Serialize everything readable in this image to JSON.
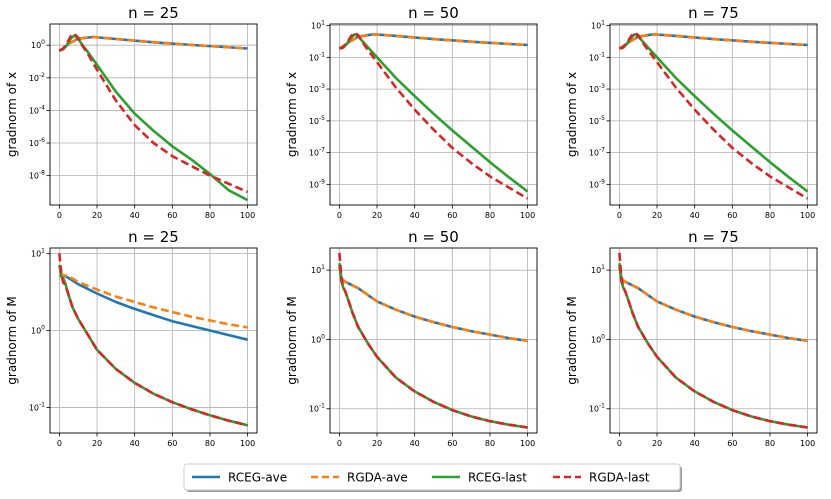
{
  "legend": {
    "items": [
      {
        "label": "RCEG-ave",
        "color": "#1f77b4",
        "dash": false
      },
      {
        "label": "RGDA-ave",
        "color": "#ff7f0e",
        "dash": true
      },
      {
        "label": "RCEG-last",
        "color": "#2ca02c",
        "dash": false
      },
      {
        "label": "RGDA-last",
        "color": "#d62728",
        "dash": true
      }
    ]
  },
  "chart_data": [
    {
      "type": "line",
      "title": "n = 25",
      "ylabel": "gradnorm of x",
      "yscale": "log",
      "xlim": [
        -5,
        105
      ],
      "ylim_exp": [
        -9.8,
        1.3
      ],
      "xticks": [
        "0",
        "20",
        "40",
        "60",
        "80",
        "100"
      ],
      "yticks": [
        {
          "base": "10",
          "exp": "0",
          "v": 0
        },
        {
          "base": "10",
          "exp": "-2",
          "v": -2
        },
        {
          "base": "10",
          "exp": "-4",
          "v": -4
        },
        {
          "base": "10",
          "exp": "-6",
          "v": -6
        },
        {
          "base": "10",
          "exp": "-8",
          "v": -8
        }
      ],
      "series": [
        {
          "name": "RCEG-ave",
          "x": [
            0,
            2,
            5,
            10,
            18,
            30,
            50,
            75,
            100
          ],
          "log10y": [
            -0.35,
            -0.2,
            0.1,
            0.4,
            0.5,
            0.38,
            0.18,
            -0.02,
            -0.2
          ]
        },
        {
          "name": "RGDA-ave",
          "x": [
            0,
            2,
            5,
            10,
            18,
            30,
            50,
            75,
            100
          ],
          "log10y": [
            -0.35,
            -0.2,
            0.1,
            0.4,
            0.5,
            0.38,
            0.18,
            -0.02,
            -0.2
          ]
        },
        {
          "name": "RCEG-last",
          "x": [
            0,
            2,
            4,
            6,
            8,
            10,
            12,
            15,
            20,
            30,
            40,
            50,
            60,
            70,
            80,
            90,
            100
          ],
          "log10y": [
            -0.3,
            -0.25,
            0.0,
            0.4,
            0.6,
            0.4,
            0.05,
            -0.4,
            -1.2,
            -2.85,
            -4.2,
            -5.25,
            -6.2,
            -7.0,
            -7.9,
            -8.9,
            -9.5
          ]
        },
        {
          "name": "RGDA-last",
          "x": [
            0,
            2,
            4,
            6,
            8,
            10,
            12,
            15,
            20,
            30,
            40,
            50,
            60,
            70,
            80,
            90,
            100
          ],
          "log10y": [
            -0.35,
            -0.2,
            0.1,
            0.55,
            0.7,
            0.45,
            0.0,
            -0.5,
            -1.5,
            -3.4,
            -4.9,
            -6.0,
            -6.8,
            -7.4,
            -8.0,
            -8.5,
            -9.0
          ]
        }
      ]
    },
    {
      "type": "line",
      "title": "n = 50",
      "ylabel": "gradnorm of x",
      "yscale": "log",
      "xlim": [
        -5,
        105
      ],
      "ylim_exp": [
        -10.3,
        1.1
      ],
      "xticks": [
        "0",
        "20",
        "40",
        "60",
        "80",
        "100"
      ],
      "yticks": [
        {
          "base": "10",
          "exp": "1",
          "v": 1
        },
        {
          "base": "10",
          "exp": "-1",
          "v": -1
        },
        {
          "base": "10",
          "exp": "-3",
          "v": -3
        },
        {
          "base": "10",
          "exp": "-5",
          "v": -5
        },
        {
          "base": "10",
          "exp": "-7",
          "v": -7
        },
        {
          "base": "10",
          "exp": "-9",
          "v": -9
        }
      ],
      "series": [
        {
          "name": "RCEG-ave",
          "x": [
            0,
            2,
            5,
            10,
            18,
            30,
            50,
            75,
            100
          ],
          "log10y": [
            -0.45,
            -0.3,
            -0.05,
            0.3,
            0.45,
            0.35,
            0.15,
            -0.05,
            -0.22
          ]
        },
        {
          "name": "RGDA-ave",
          "x": [
            0,
            2,
            5,
            10,
            18,
            30,
            50,
            75,
            100
          ],
          "log10y": [
            -0.45,
            -0.3,
            -0.05,
            0.3,
            0.45,
            0.35,
            0.15,
            -0.05,
            -0.22
          ]
        },
        {
          "name": "RCEG-last",
          "x": [
            0,
            2,
            4,
            6,
            8,
            10,
            12,
            15,
            20,
            30,
            40,
            50,
            60,
            70,
            80,
            90,
            100
          ],
          "log10y": [
            -0.45,
            -0.4,
            -0.15,
            0.2,
            0.45,
            0.35,
            0.05,
            -0.35,
            -1.0,
            -2.3,
            -3.45,
            -4.55,
            -5.6,
            -6.6,
            -7.6,
            -8.55,
            -9.45
          ]
        },
        {
          "name": "RGDA-last",
          "x": [
            0,
            2,
            4,
            6,
            8,
            10,
            12,
            15,
            20,
            30,
            40,
            50,
            60,
            70,
            80,
            90,
            100
          ],
          "log10y": [
            -0.45,
            -0.35,
            -0.1,
            0.3,
            0.55,
            0.4,
            0.0,
            -0.5,
            -1.3,
            -2.9,
            -4.3,
            -5.55,
            -6.7,
            -7.65,
            -8.5,
            -9.2,
            -9.9
          ]
        }
      ]
    },
    {
      "type": "line",
      "title": "n = 75",
      "ylabel": "gradnorm of x",
      "yscale": "log",
      "xlim": [
        -5,
        105
      ],
      "ylim_exp": [
        -10.3,
        1.1
      ],
      "xticks": [
        "0",
        "20",
        "40",
        "60",
        "80",
        "100"
      ],
      "yticks": [
        {
          "base": "10",
          "exp": "1",
          "v": 1
        },
        {
          "base": "10",
          "exp": "-1",
          "v": -1
        },
        {
          "base": "10",
          "exp": "-3",
          "v": -3
        },
        {
          "base": "10",
          "exp": "-5",
          "v": -5
        },
        {
          "base": "10",
          "exp": "-7",
          "v": -7
        },
        {
          "base": "10",
          "exp": "-9",
          "v": -9
        }
      ],
      "series": [
        {
          "name": "RCEG-ave",
          "x": [
            0,
            2,
            5,
            10,
            18,
            30,
            50,
            75,
            100
          ],
          "log10y": [
            -0.45,
            -0.3,
            -0.05,
            0.3,
            0.45,
            0.35,
            0.15,
            -0.05,
            -0.22
          ]
        },
        {
          "name": "RGDA-ave",
          "x": [
            0,
            2,
            5,
            10,
            18,
            30,
            50,
            75,
            100
          ],
          "log10y": [
            -0.45,
            -0.3,
            -0.05,
            0.3,
            0.45,
            0.35,
            0.15,
            -0.05,
            -0.22
          ]
        },
        {
          "name": "RCEG-last",
          "x": [
            0,
            2,
            4,
            6,
            8,
            10,
            12,
            15,
            20,
            30,
            40,
            50,
            60,
            70,
            80,
            90,
            100
          ],
          "log10y": [
            -0.45,
            -0.4,
            -0.15,
            0.2,
            0.45,
            0.35,
            0.05,
            -0.35,
            -1.0,
            -2.3,
            -3.45,
            -4.55,
            -5.6,
            -6.6,
            -7.6,
            -8.55,
            -9.45
          ]
        },
        {
          "name": "RGDA-last",
          "x": [
            0,
            2,
            4,
            6,
            8,
            10,
            12,
            15,
            20,
            30,
            40,
            50,
            60,
            70,
            80,
            90,
            100
          ],
          "log10y": [
            -0.45,
            -0.35,
            -0.1,
            0.3,
            0.55,
            0.4,
            0.0,
            -0.5,
            -1.3,
            -2.9,
            -4.3,
            -5.55,
            -6.7,
            -7.65,
            -8.5,
            -9.2,
            -9.9
          ]
        }
      ]
    },
    {
      "type": "line",
      "title": "n = 25",
      "ylabel": "gradnorm of M",
      "yscale": "log",
      "xlim": [
        -5,
        105
      ],
      "ylim_exp": [
        -1.33,
        1.07
      ],
      "xticks": [
        "0",
        "20",
        "40",
        "60",
        "80",
        "100"
      ],
      "yticks": [
        {
          "base": "10",
          "exp": "1",
          "v": 1
        },
        {
          "base": "10",
          "exp": "0",
          "v": 0
        },
        {
          "base": "10",
          "exp": "-1",
          "v": -1
        }
      ],
      "series": [
        {
          "name": "RCEG-ave",
          "x": [
            0,
            2,
            5,
            10,
            20,
            30,
            40,
            50,
            60,
            70,
            80,
            90,
            100
          ],
          "log10y": [
            0.7,
            0.72,
            0.68,
            0.6,
            0.48,
            0.37,
            0.28,
            0.2,
            0.12,
            0.06,
            0.0,
            -0.06,
            -0.12
          ]
        },
        {
          "name": "RGDA-ave",
          "x": [
            0,
            2,
            5,
            10,
            20,
            30,
            40,
            50,
            60,
            70,
            80,
            90,
            100
          ],
          "log10y": [
            0.7,
            0.72,
            0.7,
            0.63,
            0.53,
            0.44,
            0.37,
            0.3,
            0.24,
            0.18,
            0.13,
            0.08,
            0.04
          ]
        },
        {
          "name": "RCEG-last",
          "x": [
            0,
            1,
            2,
            3,
            5,
            7,
            10,
            15,
            20,
            30,
            40,
            50,
            60,
            70,
            80,
            90,
            100
          ],
          "log10y": [
            0.85,
            0.7,
            0.68,
            0.62,
            0.45,
            0.3,
            0.15,
            -0.05,
            -0.25,
            -0.5,
            -0.68,
            -0.82,
            -0.93,
            -1.02,
            -1.1,
            -1.17,
            -1.23
          ]
        },
        {
          "name": "RGDA-last",
          "x": [
            0,
            1,
            2,
            3,
            5,
            7,
            10,
            15,
            20,
            30,
            40,
            50,
            60,
            70,
            80,
            90,
            100
          ],
          "log10y": [
            1.0,
            0.75,
            0.62,
            0.6,
            0.45,
            0.3,
            0.15,
            -0.05,
            -0.25,
            -0.5,
            -0.68,
            -0.82,
            -0.93,
            -1.02,
            -1.1,
            -1.17,
            -1.23
          ]
        }
      ]
    },
    {
      "type": "line",
      "title": "n = 50",
      "ylabel": "gradnorm of M",
      "yscale": "log",
      "xlim": [
        -5,
        105
      ],
      "ylim_exp": [
        -1.35,
        1.32
      ],
      "xticks": [
        "0",
        "20",
        "40",
        "60",
        "80",
        "100"
      ],
      "yticks": [
        {
          "base": "10",
          "exp": "1",
          "v": 1
        },
        {
          "base": "10",
          "exp": "0",
          "v": 0
        },
        {
          "base": "10",
          "exp": "-1",
          "v": -1
        }
      ],
      "series": [
        {
          "name": "RCEG-ave",
          "x": [
            0,
            1,
            2,
            4,
            7,
            10,
            20,
            30,
            40,
            50,
            60,
            70,
            80,
            90,
            100
          ],
          "log10y": [
            1.05,
            0.9,
            0.85,
            0.82,
            0.78,
            0.74,
            0.55,
            0.43,
            0.33,
            0.25,
            0.18,
            0.12,
            0.07,
            0.02,
            -0.02
          ]
        },
        {
          "name": "RGDA-ave",
          "x": [
            0,
            1,
            2,
            4,
            7,
            10,
            20,
            30,
            40,
            50,
            60,
            70,
            80,
            90,
            100
          ],
          "log10y": [
            1.05,
            0.9,
            0.85,
            0.82,
            0.78,
            0.74,
            0.55,
            0.43,
            0.33,
            0.25,
            0.18,
            0.12,
            0.07,
            0.02,
            -0.02
          ]
        },
        {
          "name": "RCEG-last",
          "x": [
            0,
            1,
            2,
            3,
            5,
            7,
            10,
            15,
            20,
            30,
            40,
            50,
            60,
            70,
            80,
            90,
            100
          ],
          "log10y": [
            1.1,
            0.85,
            0.75,
            0.7,
            0.55,
            0.38,
            0.18,
            -0.05,
            -0.25,
            -0.55,
            -0.75,
            -0.9,
            -1.02,
            -1.11,
            -1.18,
            -1.23,
            -1.27
          ]
        },
        {
          "name": "RGDA-last",
          "x": [
            0,
            1,
            2,
            3,
            5,
            7,
            10,
            15,
            20,
            30,
            40,
            50,
            60,
            70,
            80,
            90,
            100
          ],
          "log10y": [
            1.25,
            0.9,
            0.75,
            0.7,
            0.55,
            0.38,
            0.18,
            -0.05,
            -0.25,
            -0.55,
            -0.75,
            -0.9,
            -1.02,
            -1.11,
            -1.18,
            -1.23,
            -1.27
          ]
        }
      ]
    },
    {
      "type": "line",
      "title": "n = 75",
      "ylabel": "gradnorm of M",
      "yscale": "log",
      "xlim": [
        -5,
        105
      ],
      "ylim_exp": [
        -1.35,
        1.32
      ],
      "xticks": [
        "0",
        "20",
        "40",
        "60",
        "80",
        "100"
      ],
      "yticks": [
        {
          "base": "10",
          "exp": "1",
          "v": 1
        },
        {
          "base": "10",
          "exp": "0",
          "v": 0
        },
        {
          "base": "10",
          "exp": "-1",
          "v": -1
        }
      ],
      "series": [
        {
          "name": "RCEG-ave",
          "x": [
            0,
            1,
            2,
            4,
            7,
            10,
            20,
            30,
            40,
            50,
            60,
            70,
            80,
            90,
            100
          ],
          "log10y": [
            1.05,
            0.9,
            0.85,
            0.82,
            0.78,
            0.74,
            0.55,
            0.43,
            0.33,
            0.25,
            0.18,
            0.12,
            0.07,
            0.02,
            -0.02
          ]
        },
        {
          "name": "RGDA-ave",
          "x": [
            0,
            1,
            2,
            4,
            7,
            10,
            20,
            30,
            40,
            50,
            60,
            70,
            80,
            90,
            100
          ],
          "log10y": [
            1.05,
            0.9,
            0.85,
            0.82,
            0.78,
            0.74,
            0.55,
            0.43,
            0.33,
            0.25,
            0.18,
            0.12,
            0.07,
            0.02,
            -0.02
          ]
        },
        {
          "name": "RCEG-last",
          "x": [
            0,
            1,
            2,
            3,
            5,
            7,
            10,
            15,
            20,
            30,
            40,
            50,
            60,
            70,
            80,
            90,
            100
          ],
          "log10y": [
            1.1,
            0.85,
            0.75,
            0.7,
            0.55,
            0.38,
            0.18,
            -0.05,
            -0.25,
            -0.55,
            -0.75,
            -0.9,
            -1.02,
            -1.11,
            -1.18,
            -1.23,
            -1.27
          ]
        },
        {
          "name": "RGDA-last",
          "x": [
            0,
            1,
            2,
            3,
            5,
            7,
            10,
            15,
            20,
            30,
            40,
            50,
            60,
            70,
            80,
            90,
            100
          ],
          "log10y": [
            1.25,
            0.9,
            0.75,
            0.7,
            0.55,
            0.38,
            0.18,
            -0.05,
            -0.25,
            -0.55,
            -0.75,
            -0.9,
            -1.02,
            -1.11,
            -1.18,
            -1.23,
            -1.27
          ]
        }
      ]
    }
  ]
}
